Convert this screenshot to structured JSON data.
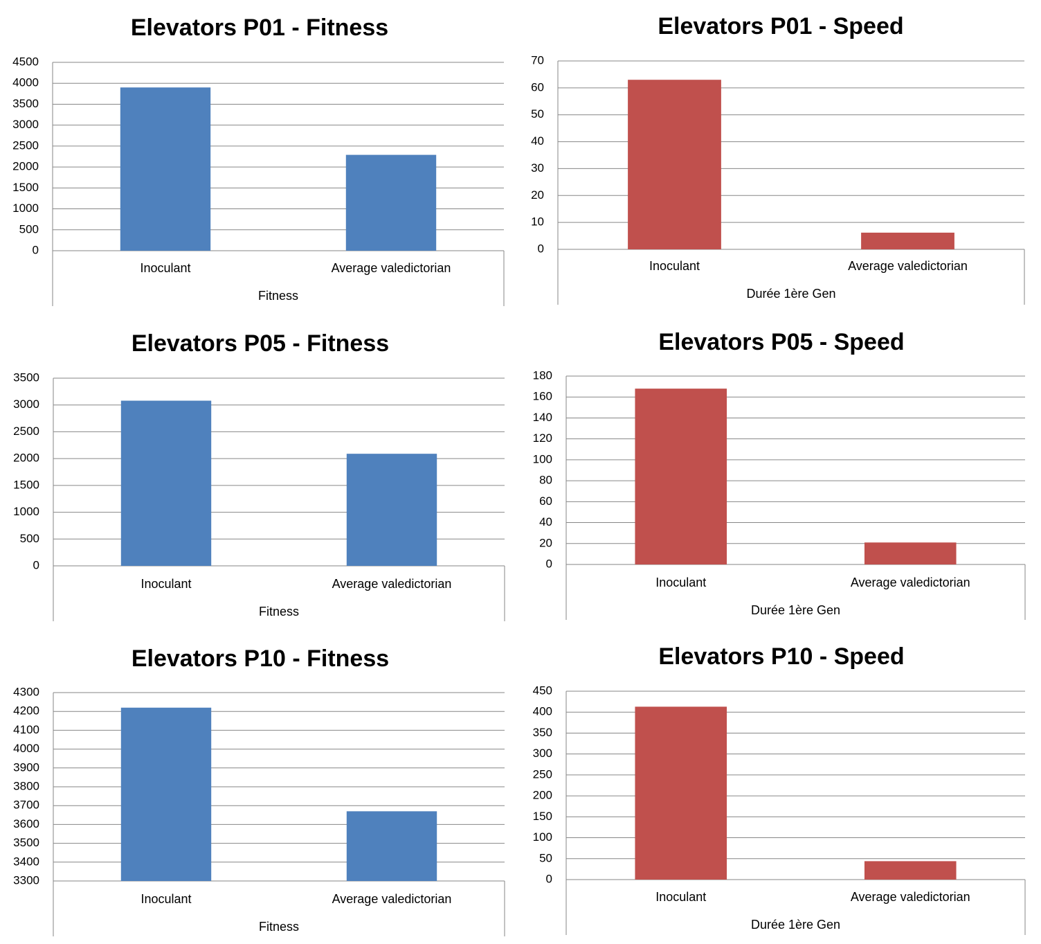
{
  "chart_data": [
    {
      "type": "bar",
      "title": "Elevators P01 - Fitness",
      "categories": [
        "Inoculant",
        "Average valedictorian"
      ],
      "values": [
        3900,
        2290
      ],
      "xlabel": "Fitness",
      "ylabel": "",
      "ylim": [
        0,
        4500
      ],
      "yticks": [
        0,
        500,
        1000,
        1500,
        2000,
        2500,
        3000,
        3500,
        4000,
        4500
      ],
      "grid": true,
      "legend": "none",
      "color": "#4f81bd"
    },
    {
      "type": "bar",
      "title": "Elevators P01 - Speed",
      "categories": [
        "Inoculant",
        "Average valedictorian"
      ],
      "values": [
        63,
        6.2
      ],
      "xlabel": "Durée 1ère Gen",
      "ylabel": "",
      "ylim": [
        0,
        70
      ],
      "yticks": [
        0,
        10,
        20,
        30,
        40,
        50,
        60,
        70
      ],
      "grid": true,
      "legend": "none",
      "color": "#c0504d"
    },
    {
      "type": "bar",
      "title": "Elevators P05 - Fitness",
      "categories": [
        "Inoculant",
        "Average valedictorian"
      ],
      "values": [
        3080,
        2090
      ],
      "xlabel": "Fitness",
      "ylabel": "",
      "ylim": [
        0,
        3500
      ],
      "yticks": [
        0,
        500,
        1000,
        1500,
        2000,
        2500,
        3000,
        3500
      ],
      "grid": true,
      "legend": "none",
      "color": "#4f81bd"
    },
    {
      "type": "bar",
      "title": "Elevators P05 - Speed",
      "categories": [
        "Inoculant",
        "Average valedictorian"
      ],
      "values": [
        168,
        21
      ],
      "xlabel": "Durée 1ère Gen",
      "ylabel": "",
      "ylim": [
        0,
        180
      ],
      "yticks": [
        0,
        20,
        40,
        60,
        80,
        100,
        120,
        140,
        160,
        180
      ],
      "grid": true,
      "legend": "none",
      "color": "#c0504d"
    },
    {
      "type": "bar",
      "title": "Elevators P10 - Fitness",
      "categories": [
        "Inoculant",
        "Average valedictorian"
      ],
      "values": [
        4220,
        3670
      ],
      "xlabel": "Fitness",
      "ylabel": "",
      "ylim": [
        3300,
        4300
      ],
      "yticks": [
        3300,
        3400,
        3500,
        3600,
        3700,
        3800,
        3900,
        4000,
        4100,
        4200,
        4300
      ],
      "grid": true,
      "legend": "none",
      "color": "#4f81bd"
    },
    {
      "type": "bar",
      "title": "Elevators P10 - Speed",
      "categories": [
        "Inoculant",
        "Average valedictorian"
      ],
      "values": [
        413,
        44
      ],
      "xlabel": "Durée 1ère Gen",
      "ylabel": "",
      "ylim": [
        0,
        450
      ],
      "yticks": [
        0,
        50,
        100,
        150,
        200,
        250,
        300,
        350,
        400,
        450
      ],
      "grid": true,
      "legend": "none",
      "color": "#c0504d"
    }
  ]
}
